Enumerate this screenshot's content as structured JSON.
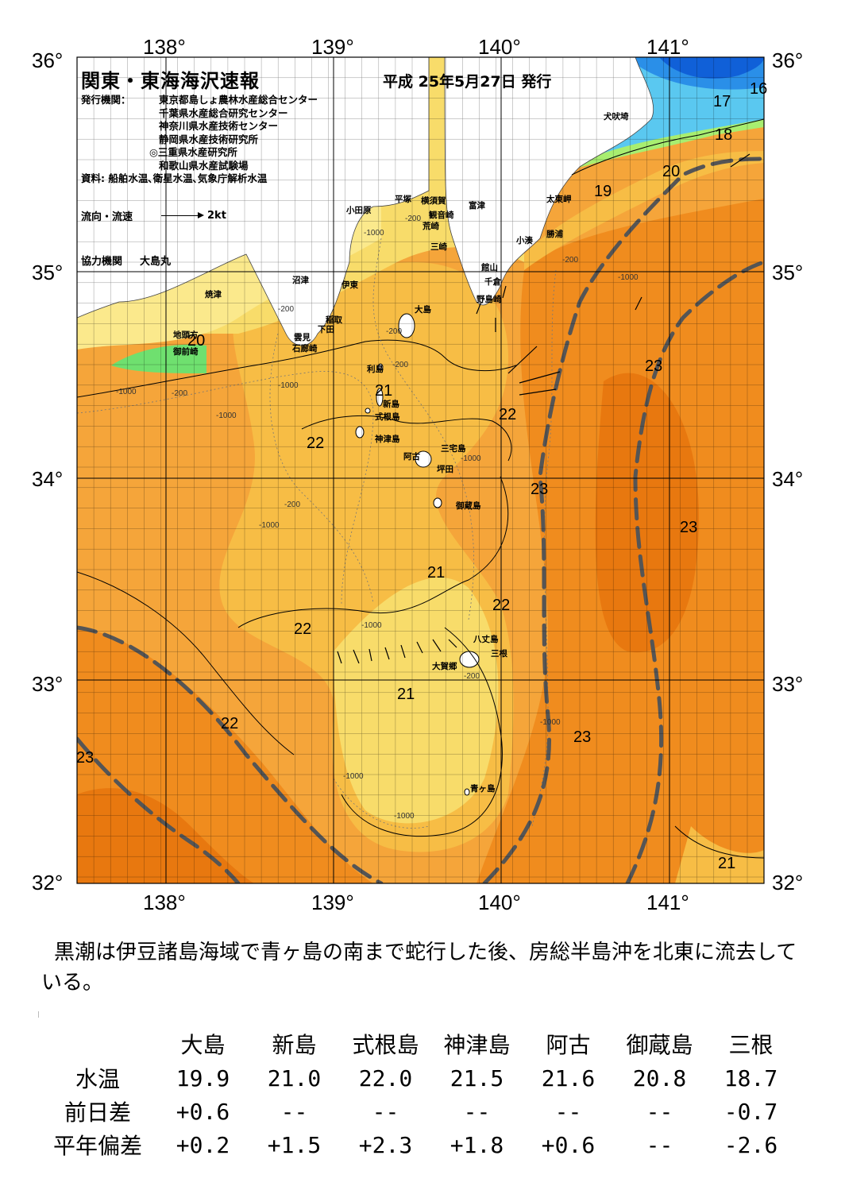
{
  "header": {
    "title": "関東・東海海沢速報",
    "date": "平成 25年5月27日 発行",
    "issuer_label": "発行機関：",
    "issuers": [
      "東京都島しょ農林水産総合センター",
      "千葉県水産総合研究センター",
      "神奈川県水産技術センター",
      "静岡県水産技術研究所",
      "◎三重県水産研究所",
      "和歌山県水産試験場"
    ],
    "source": "資料: 船舶水温､衛星水温､気象庁解析水温",
    "legend_label": "流向・流速",
    "legend_scale": "2kt",
    "coop_label": "協力機関",
    "coop_vessel": "大島丸"
  },
  "axes": {
    "lon_labels": [
      "138°",
      "139°",
      "140°",
      "141°"
    ],
    "lat_labels": [
      "36°",
      "35°",
      "34°",
      "33°",
      "32°"
    ]
  },
  "colors": {
    "sea_deep_orange": "#e8780f",
    "sea_orange": "#f08c1e",
    "sea_light_orange": "#f5a53a",
    "sea_amber": "#f7bd45",
    "sea_yellow": "#f8dc6a",
    "sea_pale_yellow": "#fbe98c",
    "sea_green": "#6fe06f",
    "sea_light_green": "#a8ee70",
    "sea_cyan": "#5ac8f0",
    "sea_blue": "#2a8fe8",
    "sea_dark_blue": "#1060d8",
    "land": "#ffffff",
    "kuroshio_axis": "#555555"
  },
  "place_names": [
    "犬吠埼",
    "太東岬",
    "勝浦",
    "小湊",
    "館山",
    "千倉",
    "野島崎",
    "富津",
    "観音崎",
    "横須賀",
    "荒崎",
    "三崎",
    "平塚",
    "小田原",
    "沼津",
    "伊東",
    "稲取",
    "下田",
    "雲見",
    "石廊崎",
    "焼津",
    "地頭方",
    "御前崎",
    "大島",
    "利島",
    "新島",
    "式根島",
    "神津島",
    "三宅島",
    "阿古",
    "坪田",
    "御蔵島",
    "八丈島",
    "三根",
    "大賀郷",
    "青ヶ島"
  ],
  "isotherm_labels": [
    "16",
    "17",
    "18",
    "19",
    "20",
    "20",
    "21",
    "22",
    "22",
    "23",
    "23",
    "23",
    "23",
    "21",
    "22",
    "22",
    "21",
    "22",
    "23",
    "21"
  ],
  "depth_labels": [
    "-200",
    "-1000"
  ],
  "summary": "黒潮は伊豆諸島海域で青ヶ島の南まで蛇行した後、房総半島沖を北東に流去している。",
  "table": {
    "stations": [
      "大島",
      "新島",
      "式根島",
      "神津島",
      "阿古",
      "御蔵島",
      "三根"
    ],
    "rows": [
      {
        "label": "水温",
        "values": [
          "19.9",
          "21.0",
          "22.0",
          "21.5",
          "21.6",
          "20.8",
          "18.7"
        ]
      },
      {
        "label": "前日差",
        "values": [
          "+0.6",
          "--",
          "--",
          "--",
          "--",
          "--",
          "-0.7"
        ]
      },
      {
        "label": "平年偏差",
        "values": [
          "+0.2",
          "+1.5",
          "+2.3",
          "+1.8",
          "+0.6",
          "--",
          "-2.6"
        ]
      }
    ]
  }
}
